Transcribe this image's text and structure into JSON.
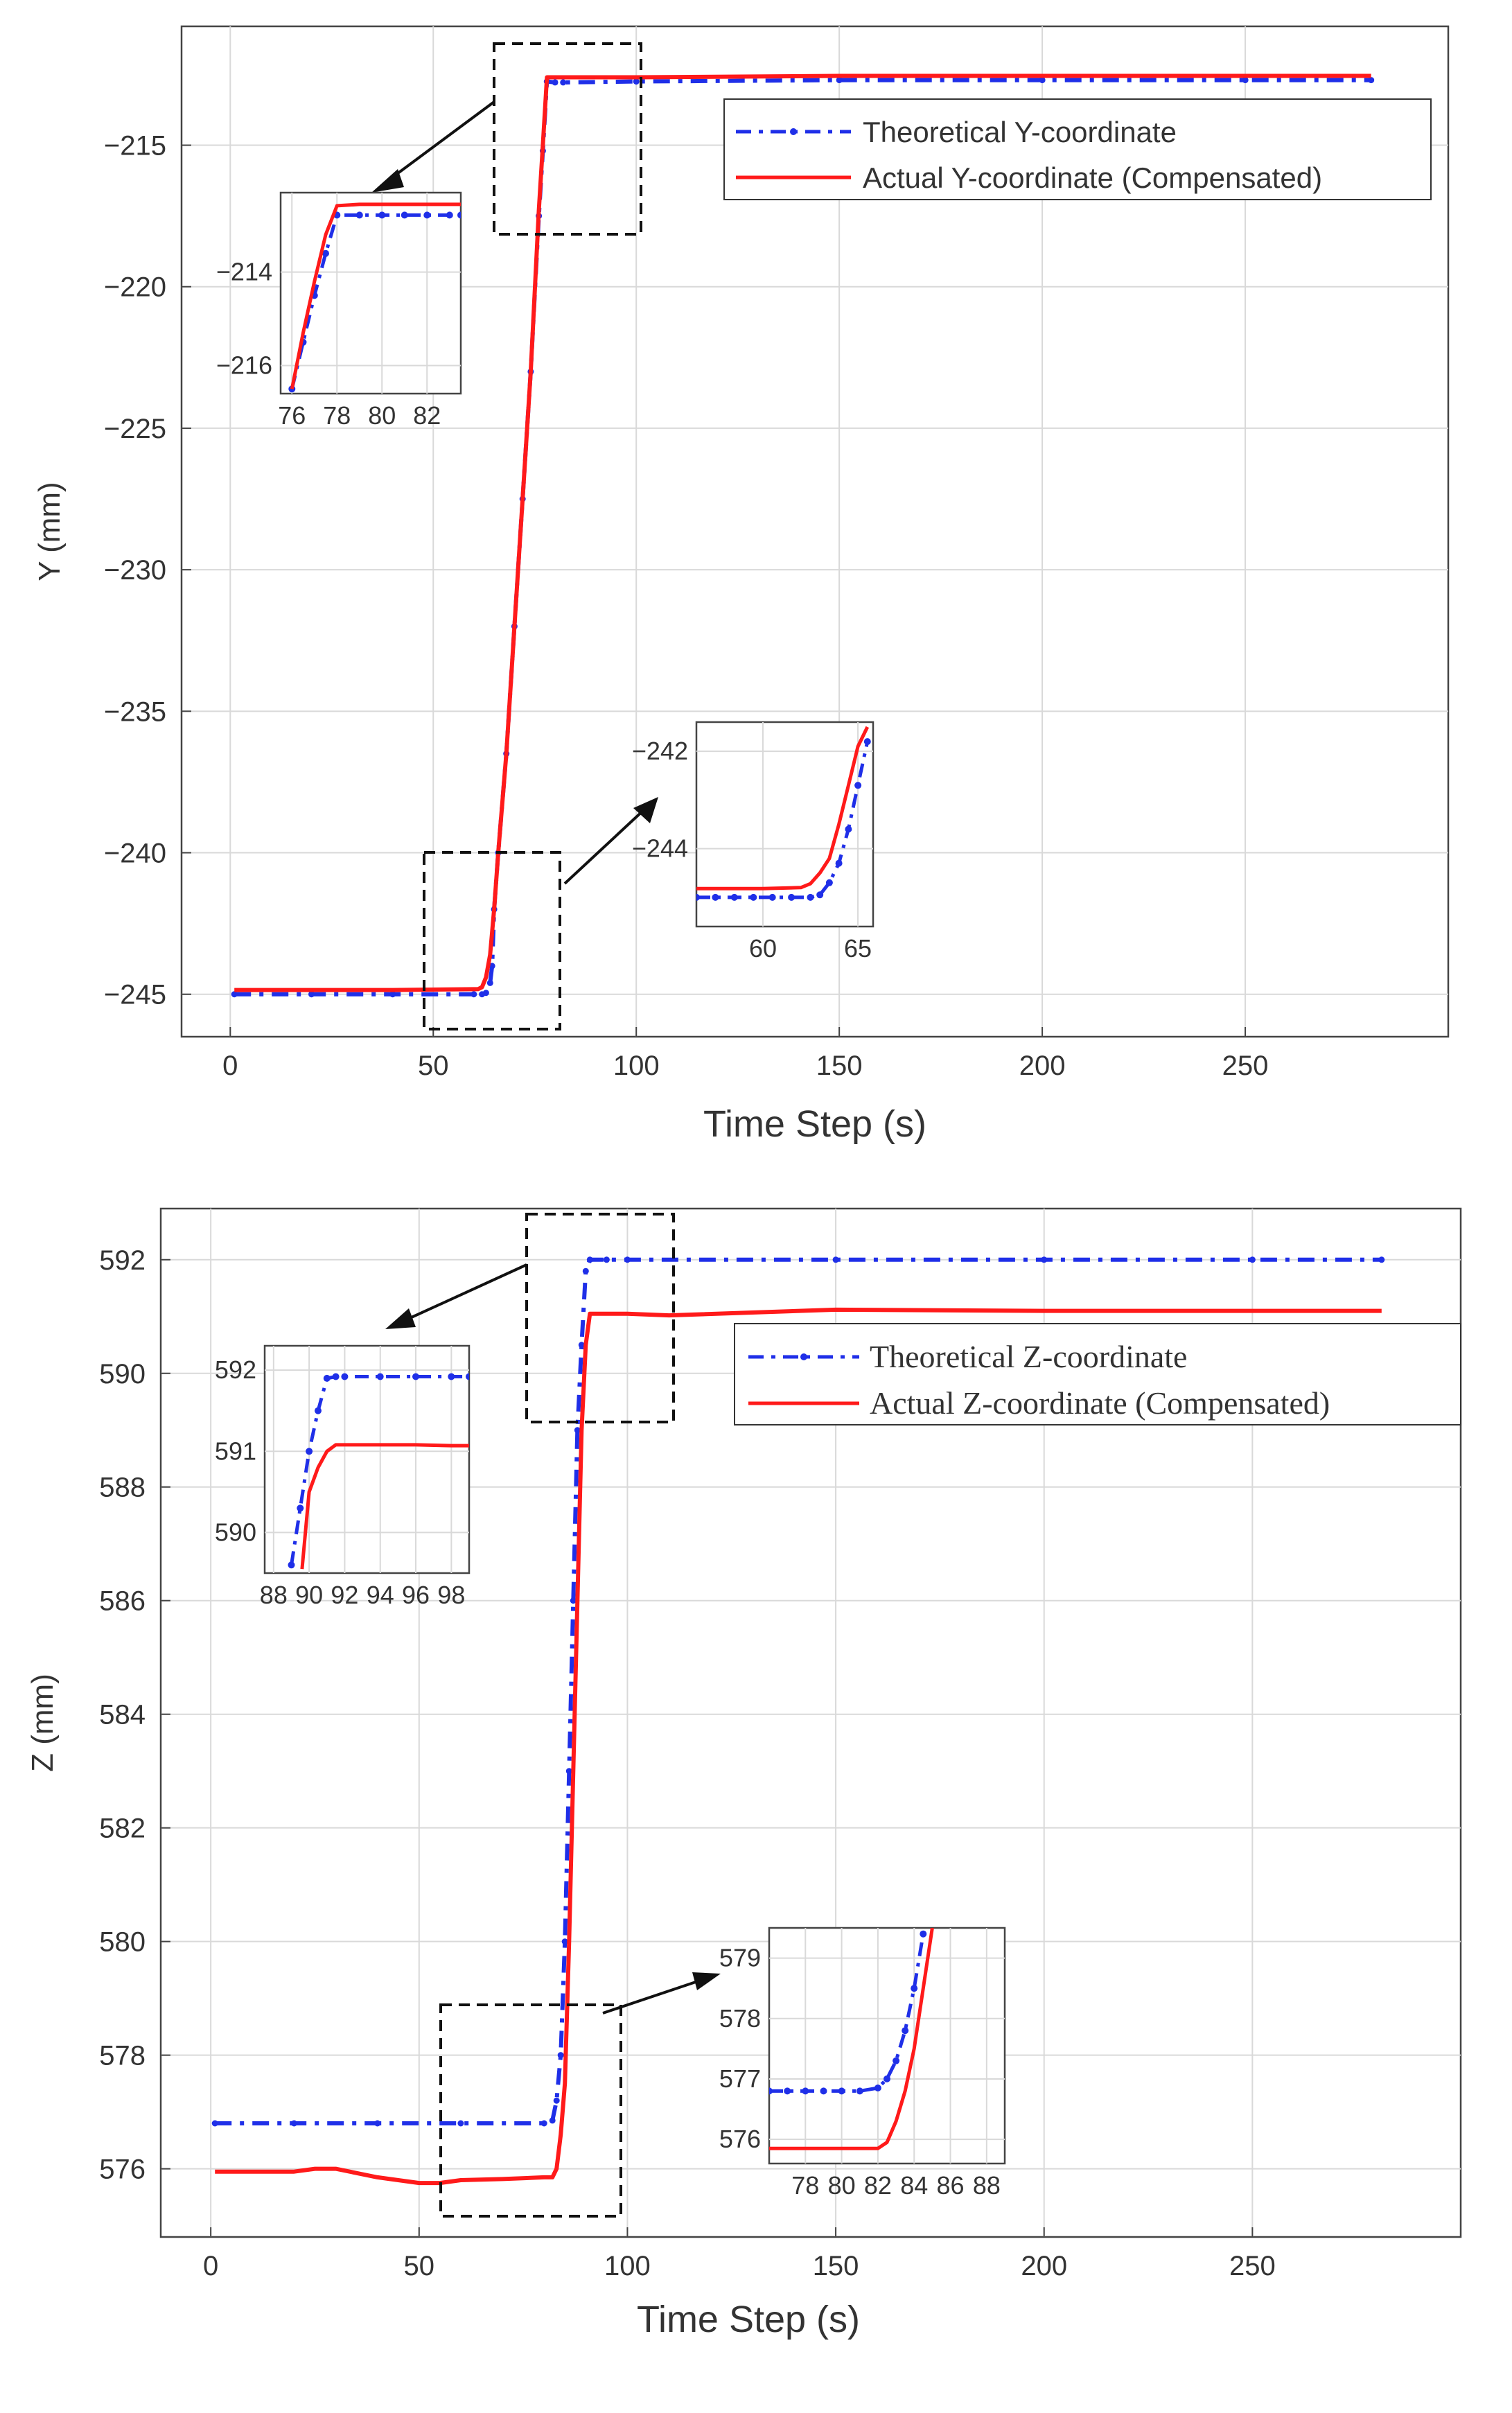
{
  "chart_data": [
    {
      "type": "line",
      "title": "",
      "xlabel": "Time Step (s)",
      "ylabel": "Y (mm)",
      "xlim": [
        -12,
        300
      ],
      "ylim": [
        -246.5,
        -210.8
      ],
      "xticks": [
        0,
        50,
        100,
        150,
        200,
        250
      ],
      "yticks": [
        -215,
        -220,
        -225,
        -230,
        -235,
        -240,
        -245
      ],
      "grid": true,
      "legend_position": "top-right",
      "series": [
        {
          "name": "Theoretical Y-coordinate",
          "color": "#1f2fe8",
          "style": "dash-dot-markers",
          "x": [
            1,
            20,
            40,
            60,
            62,
            63,
            64,
            64.5,
            65,
            66,
            68,
            70,
            72,
            74,
            76,
            77,
            78,
            80,
            82,
            100,
            150,
            200,
            250,
            281
          ],
          "y": [
            -245.0,
            -245.0,
            -245.0,
            -245.0,
            -245.0,
            -244.95,
            -244.6,
            -244.0,
            -242.0,
            -240.0,
            -236.5,
            -232.0,
            -227.5,
            -223.0,
            -217.5,
            -215.2,
            -212.75,
            -212.78,
            -212.78,
            -212.75,
            -212.7,
            -212.7,
            -212.7,
            -212.7
          ]
        },
        {
          "name": "Actual Y-coordinate (Compensated)",
          "color": "#ff1a1a",
          "style": "solid",
          "x": [
            1,
            20,
            40,
            60,
            61,
            62,
            63,
            64,
            65,
            66,
            68,
            70,
            72,
            74,
            76,
            77,
            78,
            80,
            82,
            100,
            150,
            200,
            250,
            281
          ],
          "y": [
            -244.85,
            -244.85,
            -244.85,
            -244.82,
            -244.82,
            -244.75,
            -244.4,
            -243.6,
            -242.0,
            -240.0,
            -236.5,
            -232.0,
            -227.5,
            -223.0,
            -217.3,
            -215.0,
            -212.6,
            -212.6,
            -212.6,
            -212.6,
            -212.55,
            -212.55,
            -212.55,
            -212.55
          ]
        }
      ],
      "insets": [
        {
          "xlim": [
            75.5,
            83.5
          ],
          "ylim": [
            -216.6,
            -212.3
          ],
          "xticks": [
            76,
            78,
            80,
            82
          ],
          "yticks": [
            -214,
            -216
          ],
          "series": [
            {
              "name": "Theoretical Y-coordinate",
              "x": [
                76,
                76.5,
                77,
                77.5,
                78,
                79,
                80,
                81,
                82,
                83,
                83.5
              ],
              "y": [
                -216.5,
                -215.5,
                -214.5,
                -213.6,
                -212.78,
                -212.78,
                -212.78,
                -212.78,
                -212.78,
                -212.78,
                -212.78
              ]
            },
            {
              "name": "Actual Y-coordinate (Compensated)",
              "x": [
                76,
                76.5,
                77,
                77.5,
                78,
                79,
                80,
                81,
                82,
                83,
                83.5
              ],
              "y": [
                -216.5,
                -215.3,
                -214.2,
                -213.2,
                -212.58,
                -212.55,
                -212.55,
                -212.55,
                -212.55,
                -212.55,
                -212.55
              ]
            }
          ]
        },
        {
          "xlim": [
            56.5,
            65.8
          ],
          "ylim": [
            -245.6,
            -241.4
          ],
          "xticks": [
            60,
            65
          ],
          "yticks": [
            -242,
            -244
          ],
          "series": [
            {
              "name": "Theoretical Y-coordinate",
              "x": [
                56.5,
                57.5,
                58.5,
                59.5,
                60.5,
                61.5,
                62.5,
                63,
                63.5,
                64,
                64.5,
                65,
                65.5
              ],
              "y": [
                -245.0,
                -245.0,
                -245.0,
                -245.0,
                -245.0,
                -245.0,
                -245.0,
                -244.95,
                -244.7,
                -244.3,
                -243.6,
                -242.7,
                -241.8
              ]
            },
            {
              "name": "Actual Y-coordinate (Compensated)",
              "x": [
                56.5,
                58,
                60,
                62,
                62.5,
                63,
                63.5,
                64,
                64.5,
                65,
                65.5
              ],
              "y": [
                -244.82,
                -244.82,
                -244.82,
                -244.8,
                -244.72,
                -244.5,
                -244.2,
                -243.5,
                -242.7,
                -241.9,
                -241.5
              ]
            }
          ]
        }
      ]
    },
    {
      "type": "line",
      "title": "",
      "xlabel": "Time Step (s)",
      "ylabel": "Z (mm)",
      "xlim": [
        -12,
        300
      ],
      "ylim": [
        574.8,
        592.9
      ],
      "xticks": [
        0,
        50,
        100,
        150,
        200,
        250
      ],
      "yticks": [
        592,
        590,
        588,
        586,
        584,
        582,
        580,
        578,
        576
      ],
      "grid": true,
      "legend_position": "top-right",
      "series": [
        {
          "name": "Theoretical Z-coordinate",
          "color": "#1f2fe8",
          "style": "dash-dot-markers",
          "x": [
            1,
            20,
            40,
            60,
            80,
            82,
            83,
            84,
            85,
            86,
            87,
            88,
            89,
            90,
            91,
            95,
            100,
            150,
            200,
            250,
            281
          ],
          "y": [
            576.8,
            576.8,
            576.8,
            576.8,
            576.8,
            576.85,
            577.2,
            578.0,
            580.0,
            583.0,
            586.0,
            589.0,
            590.5,
            591.8,
            592.0,
            592.0,
            592.0,
            592.0,
            592.0,
            592.0,
            592.0
          ]
        },
        {
          "name": "Actual Z-coordinate (Compensated)",
          "color": "#ff1a1a",
          "style": "solid",
          "x": [
            1,
            10,
            20,
            25,
            30,
            40,
            50,
            55,
            60,
            70,
            80,
            82,
            83,
            84,
            85,
            86,
            87,
            88,
            89,
            90,
            91,
            100,
            110,
            150,
            200,
            250,
            281
          ],
          "y": [
            575.95,
            575.95,
            575.95,
            576.0,
            576.0,
            575.85,
            575.75,
            575.75,
            575.8,
            575.82,
            575.85,
            575.85,
            576.0,
            576.6,
            577.5,
            580.0,
            583.0,
            586.0,
            589.0,
            590.5,
            591.05,
            591.05,
            591.02,
            591.12,
            591.1,
            591.1,
            591.1
          ]
        }
      ],
      "insets": [
        {
          "xlim": [
            87.5,
            99
          ],
          "ylim": [
            589.5,
            592.3
          ],
          "xticks": [
            88,
            90,
            92,
            94,
            96,
            98
          ],
          "yticks": [
            592,
            591,
            590
          ],
          "series": [
            {
              "name": "Theoretical Z-coordinate",
              "x": [
                89,
                89.5,
                90,
                90.5,
                91,
                91.5,
                92,
                94,
                96,
                98,
                99
              ],
              "y": [
                589.6,
                590.3,
                591.0,
                591.5,
                591.9,
                591.92,
                591.92,
                591.92,
                591.92,
                591.92,
                591.92
              ]
            },
            {
              "name": "Actual Z-coordinate (Compensated)",
              "x": [
                89.6,
                90,
                90.5,
                91,
                91.5,
                92,
                94,
                96,
                98,
                99
              ],
              "y": [
                589.55,
                590.5,
                590.8,
                591.0,
                591.08,
                591.08,
                591.08,
                591.08,
                591.07,
                591.07
              ]
            }
          ]
        },
        {
          "xlim": [
            76,
            89
          ],
          "ylim": [
            575.6,
            579.5
          ],
          "xticks": [
            78,
            80,
            82,
            84,
            86,
            88
          ],
          "yticks": [
            579,
            578,
            577,
            576
          ],
          "series": [
            {
              "name": "Theoretical Z-coordinate",
              "x": [
                76,
                77,
                78,
                79,
                80,
                81,
                82,
                82.5,
                83,
                83.5,
                84,
                84.5
              ],
              "y": [
                576.8,
                576.8,
                576.8,
                576.8,
                576.8,
                576.8,
                576.85,
                577.0,
                577.3,
                577.8,
                578.5,
                579.4
              ]
            },
            {
              "name": "Actual Z-coordinate (Compensated)",
              "x": [
                76,
                78,
                80,
                82,
                82.5,
                83,
                83.5,
                84,
                84.5,
                85
              ],
              "y": [
                575.85,
                575.85,
                575.85,
                575.85,
                575.95,
                576.3,
                576.8,
                577.5,
                578.5,
                579.5
              ]
            }
          ]
        }
      ]
    }
  ]
}
